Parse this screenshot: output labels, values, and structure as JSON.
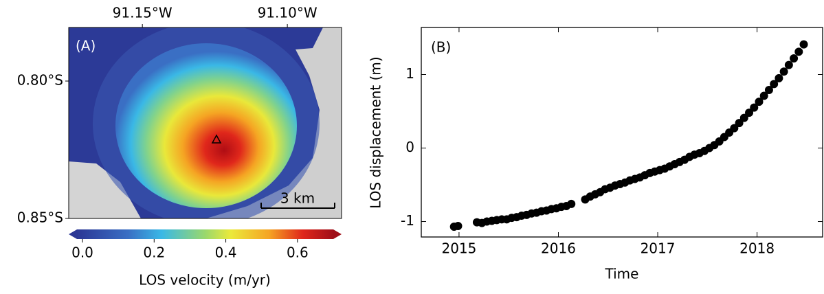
{
  "chart_data": [
    {
      "type": "image",
      "annotation": "(A)",
      "scale_bar_label": "3 km",
      "xlim": [
        -91.1754,
        -91.0813
      ],
      "xticks": [
        {
          "value": -91.15,
          "label": "91.15°W"
        },
        {
          "value": -91.1,
          "label": "91.10°W"
        }
      ],
      "ylim": [
        -0.85,
        -0.7805
      ],
      "yticks": [
        {
          "value": -0.8,
          "label": "0.80°S"
        },
        {
          "value": -0.85,
          "label": "0.85°S"
        }
      ],
      "colorbar": {
        "label": "LOS velocity (m/yr)",
        "lim": [
          0,
          0.7
        ],
        "ticks": [
          {
            "value": 0,
            "label": "0.0"
          },
          {
            "value": 0.2,
            "label": "0.2"
          },
          {
            "value": 0.4,
            "label": "0.4"
          },
          {
            "value": 0.6,
            "label": "0.6"
          }
        ]
      }
    },
    {
      "type": "scatter",
      "annotation": "(B)",
      "xlabel": "Time",
      "ylabel": "LOS displacement (m)",
      "color": "#000000",
      "xlim": [
        2014.62,
        2018.66
      ],
      "xticks": [
        2015,
        2016,
        2017,
        2018
      ],
      "ylim": [
        -1.21,
        1.64
      ],
      "yticks": [
        -1,
        0,
        1
      ],
      "x": [
        2014.95,
        2014.99,
        2015.18,
        2015.23,
        2015.28,
        2015.33,
        2015.38,
        2015.43,
        2015.48,
        2015.53,
        2015.58,
        2015.63,
        2015.68,
        2015.73,
        2015.78,
        2015.83,
        2015.88,
        2015.93,
        2015.98,
        2016.03,
        2016.08,
        2016.13,
        2016.27,
        2016.32,
        2016.37,
        2016.42,
        2016.47,
        2016.52,
        2016.57,
        2016.62,
        2016.67,
        2016.72,
        2016.77,
        2016.82,
        2016.87,
        2016.92,
        2016.97,
        2017.02,
        2017.07,
        2017.12,
        2017.17,
        2017.22,
        2017.27,
        2017.32,
        2017.37,
        2017.42,
        2017.47,
        2017.52,
        2017.57,
        2017.62,
        2017.67,
        2017.72,
        2017.77,
        2017.82,
        2017.87,
        2017.92,
        2017.97,
        2018.02,
        2018.07,
        2018.12,
        2018.17,
        2018.22,
        2018.27,
        2018.32,
        2018.37,
        2018.42,
        2018.47
      ],
      "values": [
        -1.07,
        -1.06,
        -1.01,
        -1.02,
        -1.0,
        -0.99,
        -0.98,
        -0.97,
        -0.97,
        -0.95,
        -0.94,
        -0.92,
        -0.91,
        -0.89,
        -0.88,
        -0.86,
        -0.85,
        -0.83,
        -0.82,
        -0.8,
        -0.79,
        -0.76,
        -0.7,
        -0.66,
        -0.63,
        -0.6,
        -0.56,
        -0.54,
        -0.51,
        -0.49,
        -0.47,
        -0.44,
        -0.42,
        -0.4,
        -0.37,
        -0.34,
        -0.32,
        -0.3,
        -0.28,
        -0.25,
        -0.22,
        -0.19,
        -0.16,
        -0.12,
        -0.09,
        -0.07,
        -0.04,
        0.0,
        0.04,
        0.09,
        0.15,
        0.21,
        0.27,
        0.34,
        0.41,
        0.48,
        0.55,
        0.63,
        0.71,
        0.79,
        0.87,
        0.95,
        1.04,
        1.13,
        1.22,
        1.31,
        1.41
      ]
    }
  ]
}
